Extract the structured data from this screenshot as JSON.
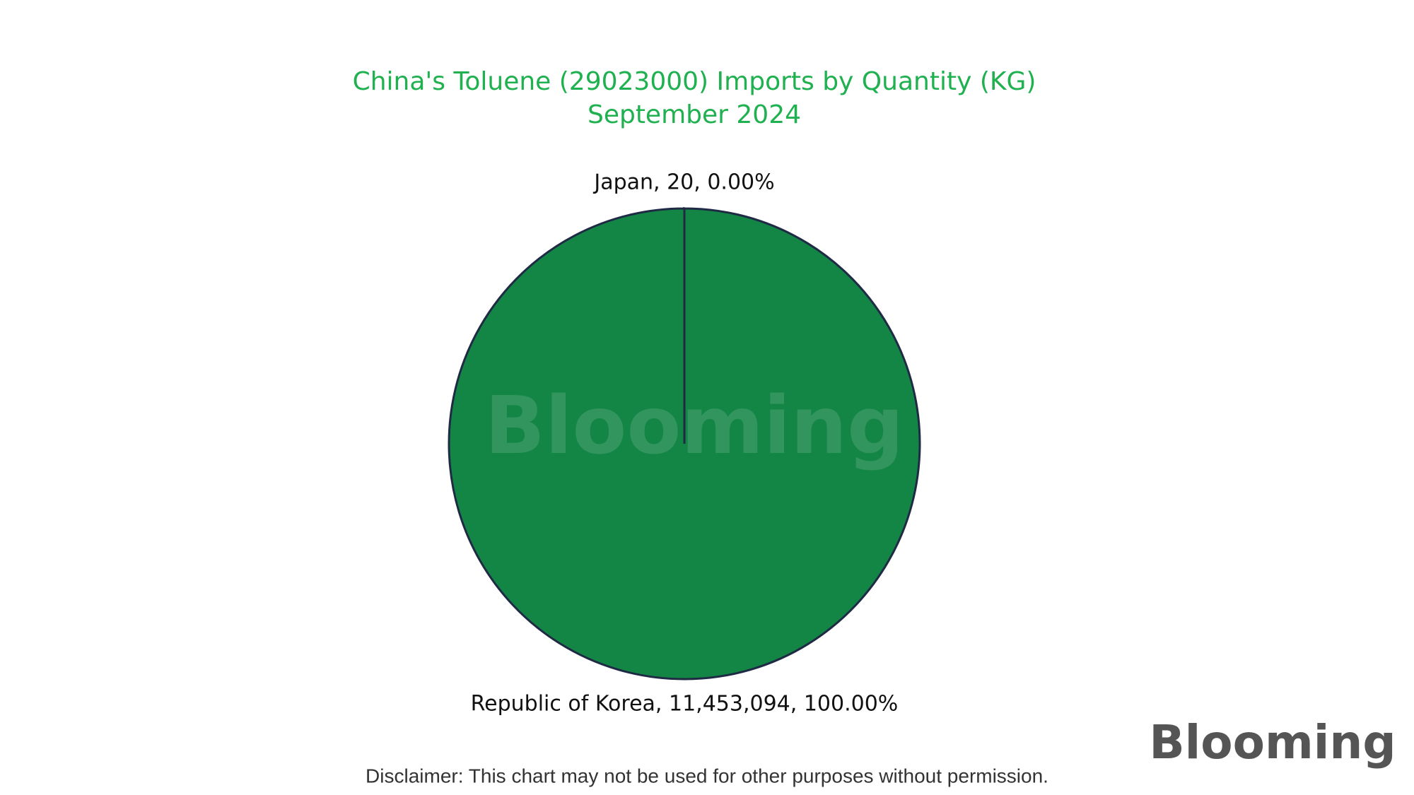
{
  "chart_data": {
    "type": "pie",
    "title": "China's Toluene (29023000) Imports by Quantity (KG)",
    "subtitle": "September 2024",
    "values": [
      20,
      11453094
    ],
    "value_labels": [
      "Japan, 20, 0.00%",
      "Republic of Korea, 11,453,094, 100.00%"
    ],
    "colors": [
      "#138646",
      "#138646"
    ],
    "edge_color": "#1f2a44"
  },
  "watermark": "Blooming",
  "logo": "Blooming",
  "disclaimer": "Disclaimer: This chart may not be used for other purposes without permission."
}
